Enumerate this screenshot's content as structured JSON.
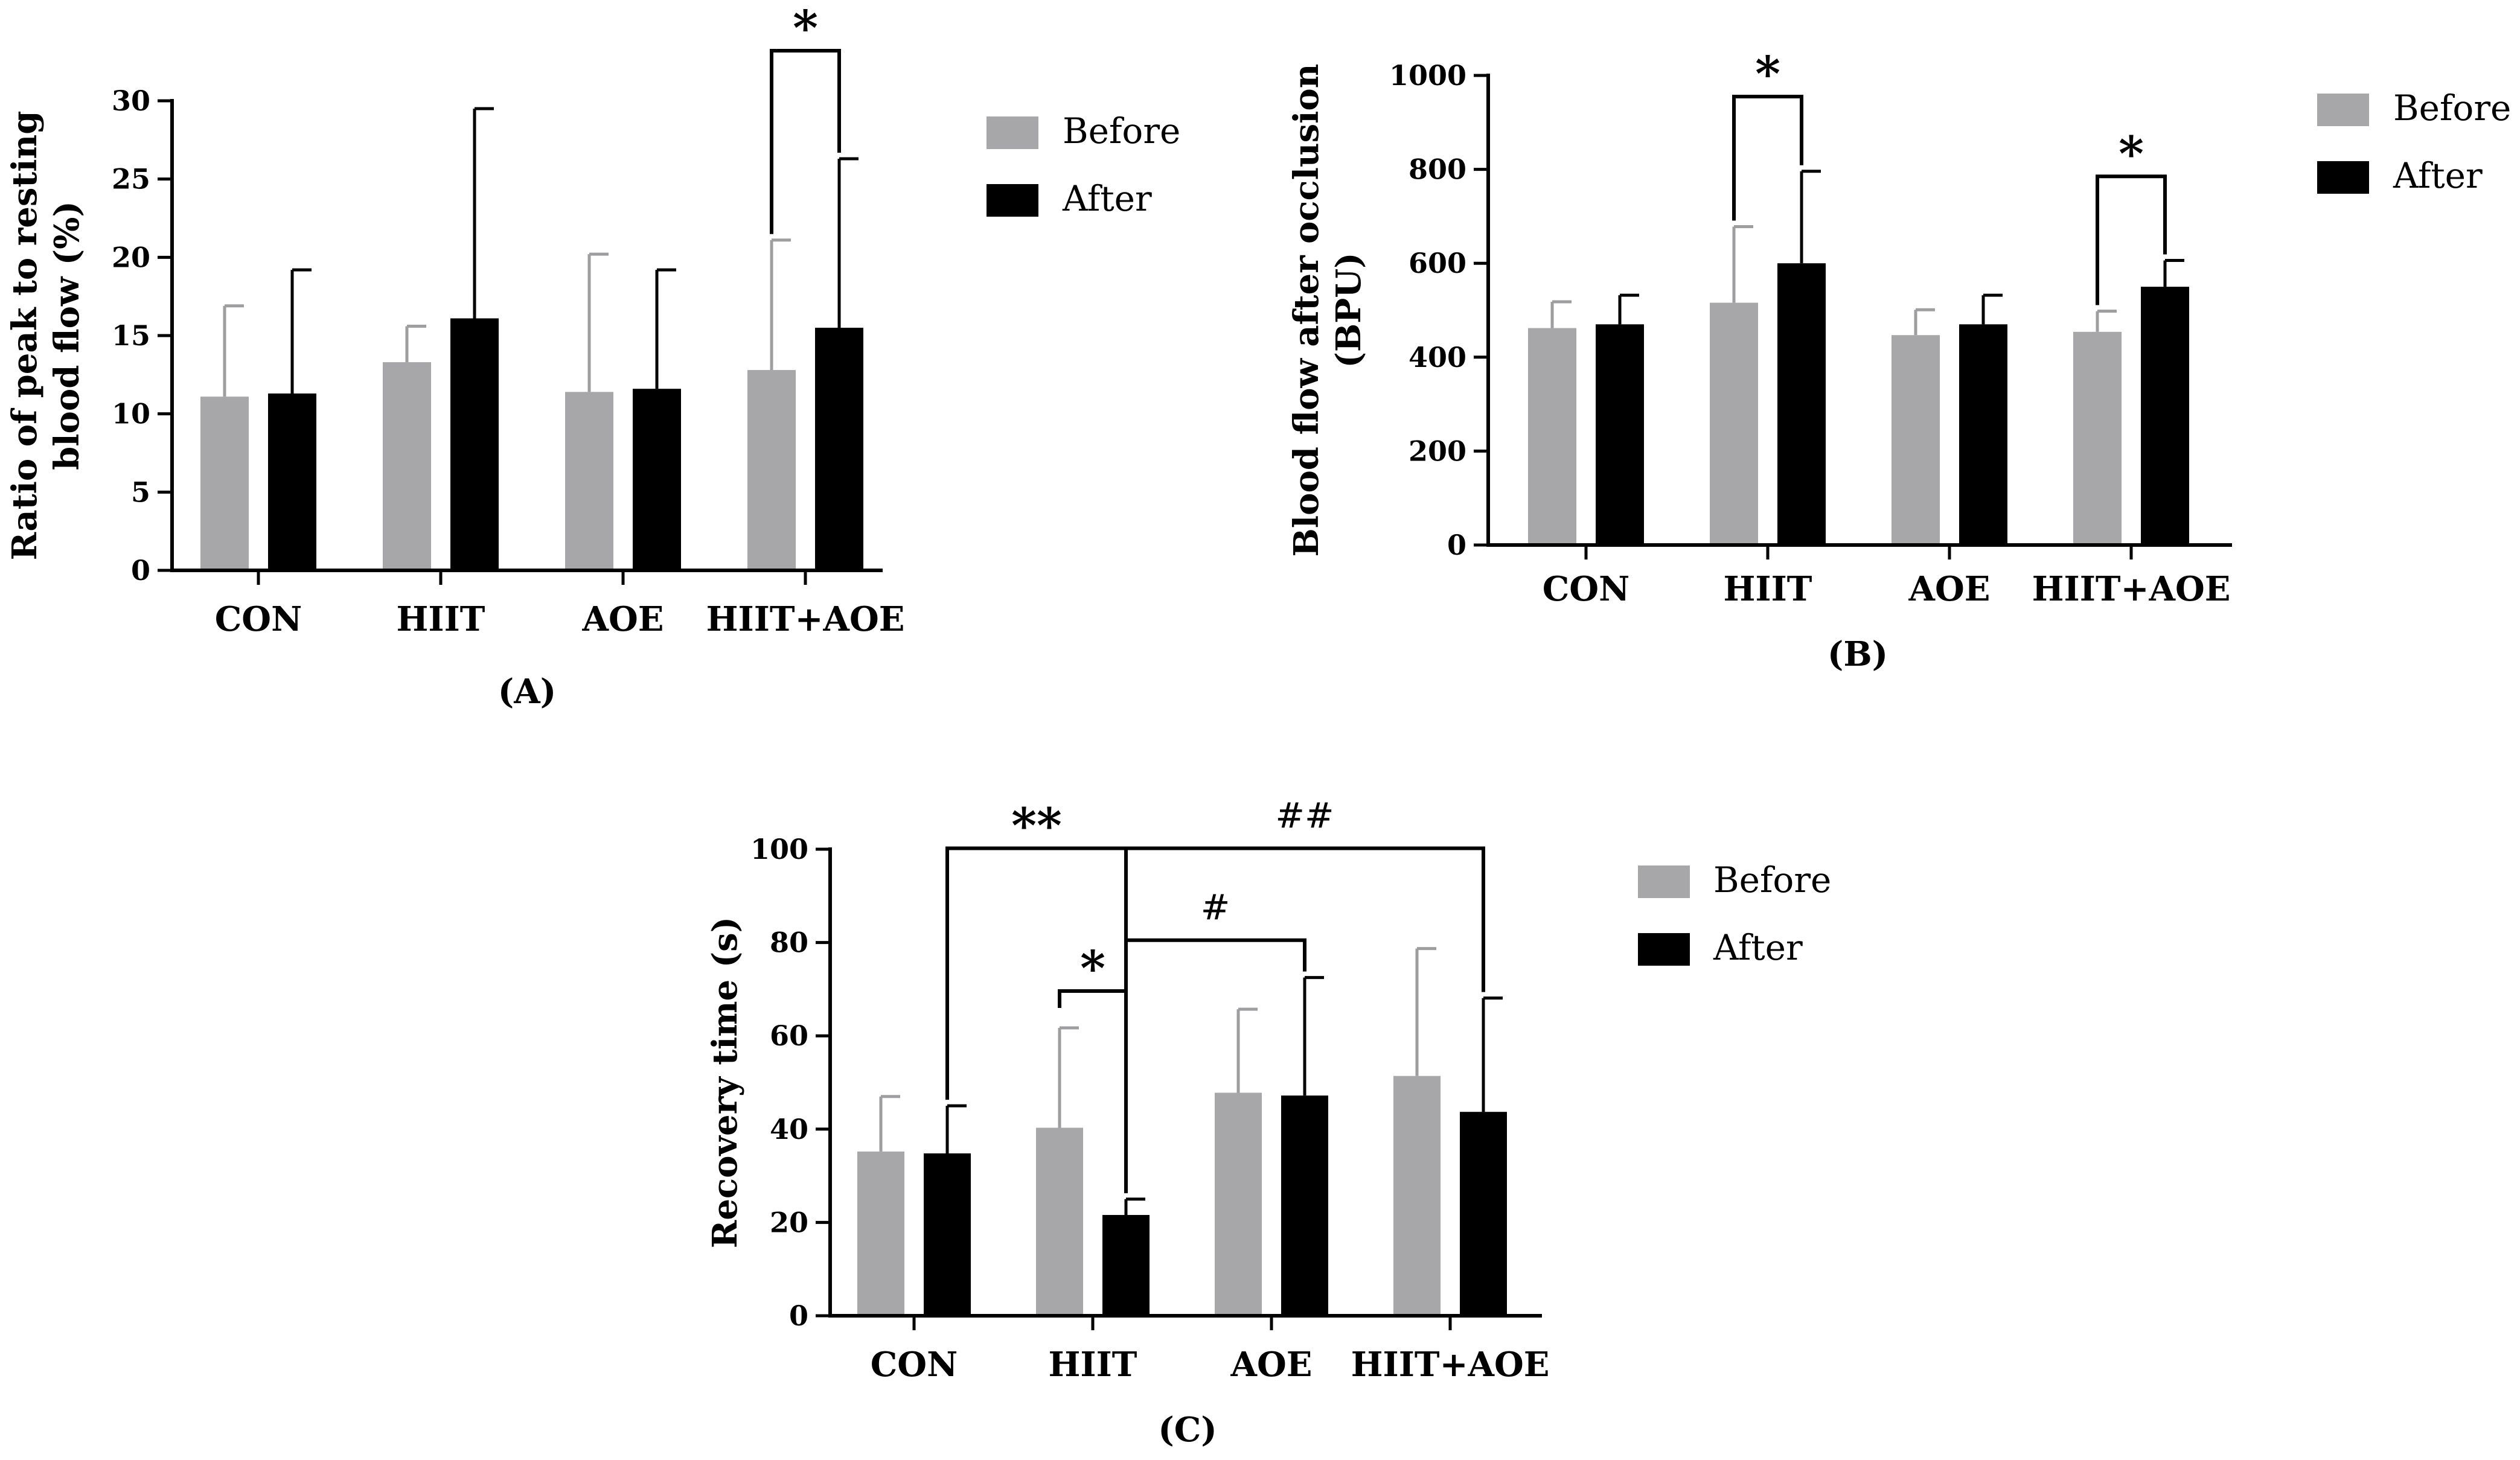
{
  "colors": {
    "before": "#a7a7aa",
    "after": "#000000"
  },
  "legend": [
    "Before",
    "After"
  ],
  "chart_data": [
    {
      "type": "bar",
      "panel": "(A)",
      "ylabel_lines": [
        "Ratio of peak to resting",
        "blood flow (%)"
      ],
      "categories": [
        "CON",
        "HIIT",
        "AOE",
        "HIIT+AOE"
      ],
      "ylim": [
        0,
        30
      ],
      "yticks": [
        "0",
        "5",
        "10",
        "15",
        "20",
        "25",
        "30"
      ],
      "series": [
        {
          "name": "Before",
          "values": [
            11.1,
            13.3,
            11.4,
            12.8
          ],
          "errors": [
            5.8,
            2.3,
            8.8,
            8.3
          ]
        },
        {
          "name": "After",
          "values": [
            11.3,
            16.1,
            11.6,
            15.5
          ],
          "errors": [
            7.9,
            13.4,
            7.6,
            10.8
          ]
        }
      ],
      "annotations": [
        {
          "label": "*",
          "category": 3,
          "from": "Before",
          "to": "After",
          "level": 33.2
        }
      ]
    },
    {
      "type": "bar",
      "panel": "(B)",
      "ylabel_lines": [
        "Blood flow after occlusion",
        "(BPU)"
      ],
      "categories": [
        "CON",
        "HIIT",
        "AOE",
        "HIIT+AOE"
      ],
      "ylim": [
        0,
        1000
      ],
      "yticks": [
        "0",
        "200",
        "400",
        "600",
        "800",
        "1000"
      ],
      "series": [
        {
          "name": "Before",
          "values": [
            462,
            516,
            447,
            454
          ],
          "errors": [
            56,
            162,
            54,
            44
          ]
        },
        {
          "name": "After",
          "values": [
            470,
            600,
            470,
            550
          ],
          "errors": [
            62,
            196,
            62,
            56
          ]
        }
      ],
      "annotations": [
        {
          "label": "*",
          "category": 1,
          "from": "Before",
          "to": "After",
          "level": 955
        },
        {
          "label": "*",
          "category": 3,
          "from": "Before",
          "to": "After",
          "level": 785
        }
      ]
    },
    {
      "type": "bar",
      "panel": "(C)",
      "ylabel_lines": [
        "Recovery time (s)"
      ],
      "categories": [
        "CON",
        "HIIT",
        "AOE",
        "HIIT+AOE"
      ],
      "ylim": [
        0,
        100
      ],
      "yticks": [
        "0",
        "20",
        "40",
        "60",
        "80",
        "100"
      ],
      "series": [
        {
          "name": "Before",
          "values": [
            35.2,
            40.3,
            47.8,
            51.4
          ],
          "errors": [
            11.8,
            21.4,
            17.9,
            27.3
          ]
        },
        {
          "name": "After",
          "values": [
            34.8,
            21.6,
            47.2,
            43.7
          ],
          "errors": [
            10.2,
            3.4,
            25.3,
            24.4
          ]
        }
      ],
      "annotations": [
        {
          "label": "**",
          "type": "cross",
          "from": [
            0,
            "After"
          ],
          "to": [
            1,
            "After"
          ],
          "level": 100.2
        },
        {
          "label": "*",
          "type": "within",
          "category": 1,
          "from": "Before",
          "to": "After",
          "level": 69.6
        },
        {
          "label": "#",
          "type": "cross",
          "from": [
            1,
            "After"
          ],
          "to": [
            2,
            "After"
          ],
          "level": 80.5
        },
        {
          "label": "##",
          "type": "cross",
          "from": [
            1,
            "After"
          ],
          "to": [
            3,
            "After"
          ],
          "level": 100.2
        }
      ]
    }
  ]
}
